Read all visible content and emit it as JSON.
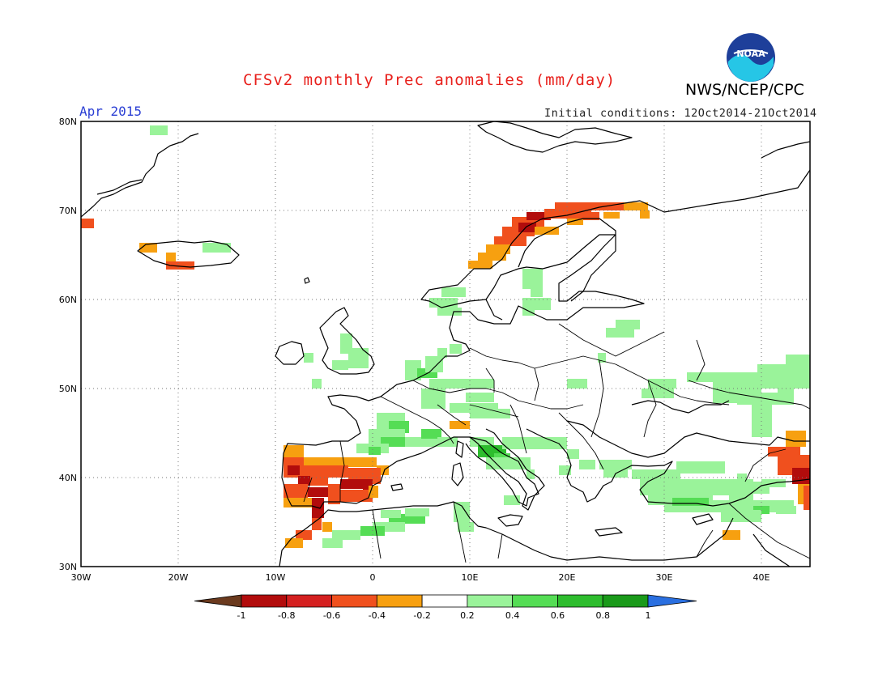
{
  "header": {
    "title": "CFSv2 monthly Prec anomalies (mm/day)",
    "agency": "NWS/NCEP/CPC",
    "month": "Apr 2015",
    "initial_conditions": "Initial conditions: 12Oct2014-21Oct2014",
    "logo_text": "NOAA"
  },
  "map": {
    "lat_ticks": [
      "80N",
      "70N",
      "60N",
      "50N",
      "40N",
      "30N"
    ],
    "lon_ticks": [
      "30W",
      "20W",
      "10W",
      "0",
      "10E",
      "20E",
      "30E",
      "40E"
    ],
    "lon_range": [
      -30,
      45
    ],
    "lat_range": [
      30,
      80
    ]
  },
  "colorbar": {
    "labels": [
      "-1",
      "-0.8",
      "-0.6",
      "-0.4",
      "-0.2",
      "0.2",
      "0.4",
      "0.6",
      "0.8",
      "1"
    ],
    "colors": [
      "#6b3a1e",
      "#b20c0c",
      "#d42020",
      "#f0501e",
      "#f7a010",
      "#ffffff",
      "#9af39a",
      "#55dd55",
      "#2ebd2e",
      "#1a9a1a",
      "#2a6fe0"
    ]
  },
  "anomaly_colors": {
    "neg_0_4": "#f7a010",
    "neg_0_6": "#f0501e",
    "neg_0_8": "#d42020",
    "neg_1": "#b20c0c",
    "pos_0_2": "#9af39a",
    "pos_0_4": "#55dd55",
    "pos_0_6": "#2ebd2e"
  }
}
